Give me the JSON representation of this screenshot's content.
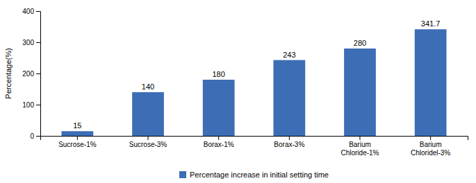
{
  "chart_data": {
    "type": "bar",
    "ylabel": "Percentage(%)",
    "categories": [
      "Sucrose-1%",
      "Sucrose-3%",
      "Borax-1%",
      "Borax-3%",
      "Barium\nChloride-1%",
      "Barium\nChloridel-3%"
    ],
    "series": [
      {
        "name": "Percentage increase in initial setting time",
        "color": "#3d6db5",
        "values": [
          15,
          140,
          180,
          243,
          280,
          341.7
        ]
      }
    ],
    "ylim": [
      0,
      400
    ],
    "yticks": [
      0,
      100,
      200,
      300,
      400
    ],
    "grid": false,
    "legend": "bottom",
    "data_labels": true
  }
}
